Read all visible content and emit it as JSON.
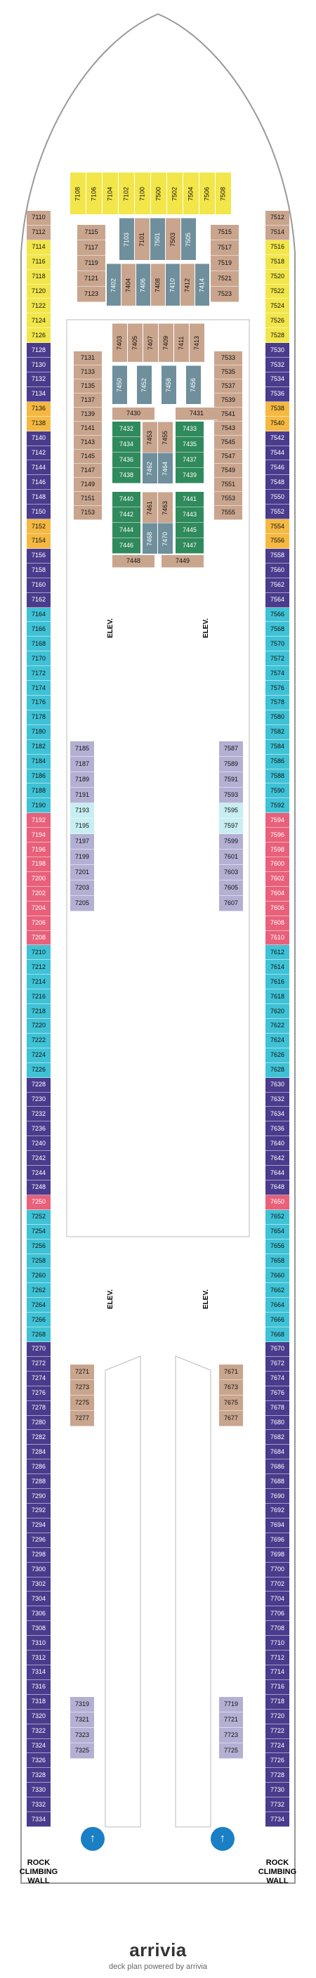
{
  "colors": {
    "purple": "#4a3b8c",
    "yellow": "#f2e64a",
    "orange": "#f5b942",
    "tan": "#c9a58e",
    "teal": "#4ba3b3",
    "green": "#2f8a5c",
    "lavender": "#b4b0d4",
    "cyan": "#3fc2d6",
    "pink": "#e8607a",
    "lightcyan": "#c8eef2",
    "steel": "#6f8f9c"
  },
  "elevator_label": "ELEV.",
  "rock_climbing_wall_label": "ROCK CLIMBING WALL",
  "brand": {
    "name": "arrivia",
    "tagline": "deck plan powered by arrivia"
  },
  "left_column": [
    {
      "n": "7110",
      "c": "tan"
    },
    {
      "n": "7112",
      "c": "tan"
    },
    {
      "n": "7114",
      "c": "yellow"
    },
    {
      "n": "7116",
      "c": "yellow"
    },
    {
      "n": "7118",
      "c": "yellow"
    },
    {
      "n": "7120",
      "c": "yellow"
    },
    {
      "n": "7122",
      "c": "yellow"
    },
    {
      "n": "7124",
      "c": "yellow"
    },
    {
      "n": "7126",
      "c": "yellow"
    },
    {
      "n": "7128",
      "c": "purple"
    },
    {
      "n": "7130",
      "c": "purple"
    },
    {
      "n": "7132",
      "c": "purple"
    },
    {
      "n": "7134",
      "c": "purple"
    },
    {
      "n": "7136",
      "c": "orange"
    },
    {
      "n": "7138",
      "c": "orange"
    },
    {
      "n": "7140",
      "c": "purple"
    },
    {
      "n": "7142",
      "c": "purple"
    },
    {
      "n": "7144",
      "c": "purple"
    },
    {
      "n": "7146",
      "c": "purple"
    },
    {
      "n": "7148",
      "c": "purple"
    },
    {
      "n": "7150",
      "c": "purple"
    },
    {
      "n": "7152",
      "c": "orange"
    },
    {
      "n": "7154",
      "c": "orange"
    },
    {
      "n": "7156",
      "c": "purple"
    },
    {
      "n": "7158",
      "c": "purple"
    },
    {
      "n": "7160",
      "c": "purple"
    },
    {
      "n": "7162",
      "c": "purple"
    },
    {
      "n": "7164",
      "c": "cyan"
    },
    {
      "n": "7166",
      "c": "cyan"
    },
    {
      "n": "7168",
      "c": "cyan"
    },
    {
      "n": "7170",
      "c": "cyan"
    },
    {
      "n": "7172",
      "c": "cyan"
    },
    {
      "n": "7174",
      "c": "cyan"
    },
    {
      "n": "7176",
      "c": "cyan"
    },
    {
      "n": "7178",
      "c": "cyan"
    },
    {
      "n": "7180",
      "c": "cyan"
    },
    {
      "n": "7182",
      "c": "cyan"
    },
    {
      "n": "7184",
      "c": "cyan"
    },
    {
      "n": "7186",
      "c": "cyan"
    },
    {
      "n": "7188",
      "c": "cyan"
    },
    {
      "n": "7190",
      "c": "cyan"
    },
    {
      "n": "7192",
      "c": "pink"
    },
    {
      "n": "7194",
      "c": "pink"
    },
    {
      "n": "7196",
      "c": "pink"
    },
    {
      "n": "7198",
      "c": "pink"
    },
    {
      "n": "7200",
      "c": "pink"
    },
    {
      "n": "7202",
      "c": "pink"
    },
    {
      "n": "7204",
      "c": "pink"
    },
    {
      "n": "7206",
      "c": "pink"
    },
    {
      "n": "7208",
      "c": "pink"
    },
    {
      "n": "7210",
      "c": "cyan"
    },
    {
      "n": "7212",
      "c": "cyan"
    },
    {
      "n": "7214",
      "c": "cyan"
    },
    {
      "n": "7216",
      "c": "cyan"
    },
    {
      "n": "7218",
      "c": "cyan"
    },
    {
      "n": "7220",
      "c": "cyan"
    },
    {
      "n": "7222",
      "c": "cyan"
    },
    {
      "n": "7224",
      "c": "cyan"
    },
    {
      "n": "7226",
      "c": "cyan"
    },
    {
      "n": "7228",
      "c": "purple"
    },
    {
      "n": "7230",
      "c": "purple"
    },
    {
      "n": "7232",
      "c": "purple"
    },
    {
      "n": "7236",
      "c": "purple"
    },
    {
      "n": "7240",
      "c": "purple"
    },
    {
      "n": "7242",
      "c": "purple"
    },
    {
      "n": "7244",
      "c": "purple"
    },
    {
      "n": "7248",
      "c": "purple"
    },
    {
      "n": "7250",
      "c": "pink"
    },
    {
      "n": "7252",
      "c": "cyan"
    },
    {
      "n": "7254",
      "c": "cyan"
    },
    {
      "n": "7256",
      "c": "cyan"
    },
    {
      "n": "7258",
      "c": "cyan"
    },
    {
      "n": "7260",
      "c": "cyan"
    },
    {
      "n": "7262",
      "c": "cyan"
    },
    {
      "n": "7264",
      "c": "cyan"
    },
    {
      "n": "7266",
      "c": "cyan"
    },
    {
      "n": "7268",
      "c": "cyan"
    },
    {
      "n": "7270",
      "c": "purple"
    },
    {
      "n": "7272",
      "c": "purple"
    },
    {
      "n": "7274",
      "c": "purple"
    },
    {
      "n": "7276",
      "c": "purple"
    },
    {
      "n": "7278",
      "c": "purple"
    },
    {
      "n": "7280",
      "c": "purple"
    },
    {
      "n": "7282",
      "c": "purple"
    },
    {
      "n": "7284",
      "c": "purple"
    },
    {
      "n": "7286",
      "c": "purple"
    },
    {
      "n": "7288",
      "c": "purple"
    },
    {
      "n": "7290",
      "c": "purple"
    },
    {
      "n": "7292",
      "c": "purple"
    },
    {
      "n": "7294",
      "c": "purple"
    },
    {
      "n": "7296",
      "c": "purple"
    },
    {
      "n": "7298",
      "c": "purple"
    },
    {
      "n": "7300",
      "c": "purple"
    },
    {
      "n": "7302",
      "c": "purple"
    },
    {
      "n": "7304",
      "c": "purple"
    },
    {
      "n": "7306",
      "c": "purple"
    },
    {
      "n": "7308",
      "c": "purple"
    },
    {
      "n": "7310",
      "c": "purple"
    },
    {
      "n": "7312",
      "c": "purple"
    },
    {
      "n": "7314",
      "c": "purple"
    },
    {
      "n": "7316",
      "c": "purple"
    },
    {
      "n": "7318",
      "c": "purple"
    },
    {
      "n": "7320",
      "c": "purple"
    },
    {
      "n": "7322",
      "c": "purple"
    },
    {
      "n": "7324",
      "c": "purple"
    },
    {
      "n": "7326",
      "c": "purple"
    },
    {
      "n": "7328",
      "c": "purple"
    },
    {
      "n": "7330",
      "c": "purple"
    },
    {
      "n": "7332",
      "c": "purple"
    },
    {
      "n": "7334",
      "c": "purple"
    }
  ],
  "right_column": [
    {
      "n": "7512",
      "c": "tan"
    },
    {
      "n": "7514",
      "c": "tan"
    },
    {
      "n": "7516",
      "c": "yellow"
    },
    {
      "n": "7518",
      "c": "yellow"
    },
    {
      "n": "7520",
      "c": "yellow"
    },
    {
      "n": "7522",
      "c": "yellow"
    },
    {
      "n": "7524",
      "c": "yellow"
    },
    {
      "n": "7526",
      "c": "yellow"
    },
    {
      "n": "7528",
      "c": "yellow"
    },
    {
      "n": "7530",
      "c": "purple"
    },
    {
      "n": "7532",
      "c": "purple"
    },
    {
      "n": "7534",
      "c": "purple"
    },
    {
      "n": "7536",
      "c": "purple"
    },
    {
      "n": "7538",
      "c": "orange"
    },
    {
      "n": "7540",
      "c": "orange"
    },
    {
      "n": "7542",
      "c": "purple"
    },
    {
      "n": "7544",
      "c": "purple"
    },
    {
      "n": "7546",
      "c": "purple"
    },
    {
      "n": "7548",
      "c": "purple"
    },
    {
      "n": "7550",
      "c": "purple"
    },
    {
      "n": "7552",
      "c": "purple"
    },
    {
      "n": "7554",
      "c": "orange"
    },
    {
      "n": "7556",
      "c": "orange"
    },
    {
      "n": "7558",
      "c": "purple"
    },
    {
      "n": "7560",
      "c": "purple"
    },
    {
      "n": "7562",
      "c": "purple"
    },
    {
      "n": "7564",
      "c": "purple"
    },
    {
      "n": "7566",
      "c": "cyan"
    },
    {
      "n": "7568",
      "c": "cyan"
    },
    {
      "n": "7570",
      "c": "cyan"
    },
    {
      "n": "7572",
      "c": "cyan"
    },
    {
      "n": "7574",
      "c": "cyan"
    },
    {
      "n": "7576",
      "c": "cyan"
    },
    {
      "n": "7578",
      "c": "cyan"
    },
    {
      "n": "7580",
      "c": "cyan"
    },
    {
      "n": "7582",
      "c": "cyan"
    },
    {
      "n": "7584",
      "c": "cyan"
    },
    {
      "n": "7586",
      "c": "cyan"
    },
    {
      "n": "7588",
      "c": "cyan"
    },
    {
      "n": "7590",
      "c": "cyan"
    },
    {
      "n": "7592",
      "c": "cyan"
    },
    {
      "n": "7594",
      "c": "pink"
    },
    {
      "n": "7596",
      "c": "pink"
    },
    {
      "n": "7598",
      "c": "pink"
    },
    {
      "n": "7600",
      "c": "pink"
    },
    {
      "n": "7602",
      "c": "pink"
    },
    {
      "n": "7604",
      "c": "pink"
    },
    {
      "n": "7606",
      "c": "pink"
    },
    {
      "n": "7608",
      "c": "pink"
    },
    {
      "n": "7610",
      "c": "pink"
    },
    {
      "n": "7612",
      "c": "cyan"
    },
    {
      "n": "7614",
      "c": "cyan"
    },
    {
      "n": "7616",
      "c": "cyan"
    },
    {
      "n": "7618",
      "c": "cyan"
    },
    {
      "n": "7620",
      "c": "cyan"
    },
    {
      "n": "7622",
      "c": "cyan"
    },
    {
      "n": "7624",
      "c": "cyan"
    },
    {
      "n": "7626",
      "c": "cyan"
    },
    {
      "n": "7628",
      "c": "cyan"
    },
    {
      "n": "7630",
      "c": "purple"
    },
    {
      "n": "7632",
      "c": "purple"
    },
    {
      "n": "7634",
      "c": "purple"
    },
    {
      "n": "7636",
      "c": "purple"
    },
    {
      "n": "7640",
      "c": "purple"
    },
    {
      "n": "7642",
      "c": "purple"
    },
    {
      "n": "7644",
      "c": "purple"
    },
    {
      "n": "7648",
      "c": "purple"
    },
    {
      "n": "7650",
      "c": "pink"
    },
    {
      "n": "7652",
      "c": "cyan"
    },
    {
      "n": "7654",
      "c": "cyan"
    },
    {
      "n": "7656",
      "c": "cyan"
    },
    {
      "n": "7658",
      "c": "cyan"
    },
    {
      "n": "7660",
      "c": "cyan"
    },
    {
      "n": "7662",
      "c": "cyan"
    },
    {
      "n": "7664",
      "c": "cyan"
    },
    {
      "n": "7666",
      "c": "cyan"
    },
    {
      "n": "7668",
      "c": "cyan"
    },
    {
      "n": "7670",
      "c": "purple"
    },
    {
      "n": "7672",
      "c": "purple"
    },
    {
      "n": "7674",
      "c": "purple"
    },
    {
      "n": "7676",
      "c": "purple"
    },
    {
      "n": "7678",
      "c": "purple"
    },
    {
      "n": "7680",
      "c": "purple"
    },
    {
      "n": "7682",
      "c": "purple"
    },
    {
      "n": "7684",
      "c": "purple"
    },
    {
      "n": "7686",
      "c": "purple"
    },
    {
      "n": "7688",
      "c": "purple"
    },
    {
      "n": "7690",
      "c": "purple"
    },
    {
      "n": "7692",
      "c": "purple"
    },
    {
      "n": "7694",
      "c": "purple"
    },
    {
      "n": "7696",
      "c": "purple"
    },
    {
      "n": "7698",
      "c": "purple"
    },
    {
      "n": "7700",
      "c": "purple"
    },
    {
      "n": "7702",
      "c": "purple"
    },
    {
      "n": "7704",
      "c": "purple"
    },
    {
      "n": "7706",
      "c": "purple"
    },
    {
      "n": "7708",
      "c": "purple"
    },
    {
      "n": "7710",
      "c": "purple"
    },
    {
      "n": "7712",
      "c": "purple"
    },
    {
      "n": "7714",
      "c": "purple"
    },
    {
      "n": "7716",
      "c": "purple"
    },
    {
      "n": "7718",
      "c": "purple"
    },
    {
      "n": "7720",
      "c": "purple"
    },
    {
      "n": "7722",
      "c": "purple"
    },
    {
      "n": "7724",
      "c": "purple"
    },
    {
      "n": "7726",
      "c": "purple"
    },
    {
      "n": "7728",
      "c": "purple"
    },
    {
      "n": "7730",
      "c": "purple"
    },
    {
      "n": "7732",
      "c": "purple"
    },
    {
      "n": "7734",
      "c": "purple"
    }
  ],
  "forward_top": [
    "7108",
    "7106",
    "7104",
    "7102",
    "7100",
    "7500",
    "7502",
    "7504",
    "7506",
    "7508"
  ],
  "forward_left_block": [
    "7115",
    "7117",
    "7119",
    "7121",
    "7123"
  ],
  "forward_right_block": [
    "7515",
    "7517",
    "7519",
    "7521",
    "7523"
  ],
  "forward_mid_vertical": [
    "7103",
    "7101",
    "7501",
    "7503",
    "7505"
  ],
  "forward_mid_vertical2": [
    "7402",
    "7404",
    "7406",
    "7408",
    "7410",
    "7412",
    "7414"
  ],
  "mid_left_tan": [
    "7131",
    "7133",
    "7135",
    "7137",
    "7139",
    "7141",
    "7143",
    "7145",
    "7147",
    "7149",
    "7151",
    "7153"
  ],
  "mid_right_tan": [
    "7533",
    "7535",
    "7537",
    "7539",
    "7541",
    "7543",
    "7545",
    "7547",
    "7549",
    "7551",
    "7553",
    "7555"
  ],
  "mid_top_row": [
    "7403",
    "7405",
    "7407",
    "7409",
    "7411",
    "7413"
  ],
  "mid_second_row": [
    "7450",
    "7452",
    "7458",
    "7456"
  ],
  "inner_labels_top": [
    "7430",
    "7431"
  ],
  "inner_green_left": [
    "7432",
    "7434",
    "7436",
    "7438"
  ],
  "inner_green_right": [
    "7433",
    "7435",
    "7437",
    "7439"
  ],
  "inner_mid": [
    "7453",
    "7455",
    "7462",
    "7464"
  ],
  "lower_green_left": [
    "7440",
    "7442",
    "7444",
    "7446"
  ],
  "lower_green_right": [
    "7441",
    "7443",
    "7445",
    "7447"
  ],
  "lower_mid": [
    "7461",
    "7463",
    "7468",
    "7470"
  ],
  "bottom_row": [
    "7448",
    "7449"
  ],
  "atrium_left_lav": [
    "7185",
    "7187",
    "7189",
    "7191",
    "7193",
    "7195",
    "7197",
    "7199",
    "7201",
    "7203",
    "7205"
  ],
  "atrium_right_lav": [
    "7587",
    "7589",
    "7591",
    "7593",
    "7595",
    "7597",
    "7599",
    "7601",
    "7603",
    "7605",
    "7607"
  ],
  "aft_left_tan": [
    "7271",
    "7273",
    "7275",
    "7277"
  ],
  "aft_right_tan": [
    "7671",
    "7673",
    "7675",
    "7677"
  ],
  "aft_left_lav": [
    "7319",
    "7321",
    "7323",
    "7325"
  ],
  "aft_right_lav": [
    "7719",
    "7721",
    "7723",
    "7725"
  ]
}
